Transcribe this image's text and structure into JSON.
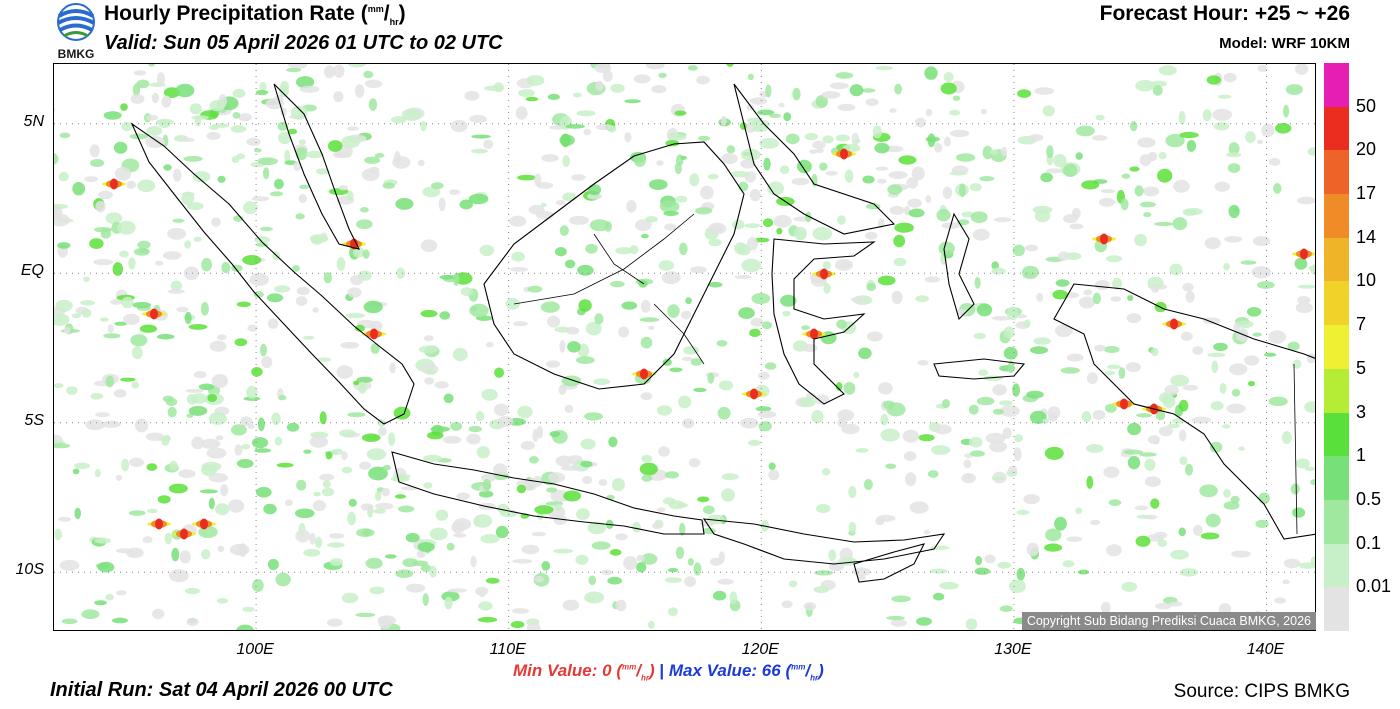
{
  "header": {
    "logo_text": "BMKG",
    "title_main": "Hourly Precipitation Rate (",
    "title_unit_num": "mm",
    "title_unit_den": "hr",
    "title_close": ")",
    "valid": "Valid: Sun 05 April 2026 01 UTC to 02 UTC",
    "forecast_hour": "Forecast Hour: +25 ~ +26",
    "model": "Model: WRF 10KM"
  },
  "map": {
    "lon_range": [
      92,
      142
    ],
    "lat_range": [
      -12,
      7
    ],
    "y_labels": [
      "5N",
      "EQ",
      "5S",
      "10S"
    ],
    "x_labels": [
      "100E",
      "110E",
      "120E",
      "130E",
      "140E"
    ],
    "copyright": "Copyright Sub Bidang Prediksi Cuaca BMKG, 2026"
  },
  "stats": {
    "min_label": "Min Value:",
    "min_value": "0",
    "separator": "|",
    "max_label": "Max Value:",
    "max_value": "66",
    "unit_num": "mm",
    "unit_den": "hr"
  },
  "footer": {
    "initial_run": "Initial Run: Sat 04 April 2026 00 UTC",
    "source": "Source: CIPS BMKG"
  },
  "colorbar": {
    "levels": [
      "0.01",
      "0.1",
      "0.5",
      "1",
      "3",
      "5",
      "7",
      "10",
      "14",
      "17",
      "20",
      "50"
    ],
    "colors": [
      "#e3e3e3",
      "#c8f0c8",
      "#a0e8a0",
      "#78e078",
      "#5ae03a",
      "#b4ec36",
      "#f0f032",
      "#f0d228",
      "#f0b428",
      "#f08c28",
      "#ee6428",
      "#ea2d1e",
      "#e61eb4"
    ]
  }
}
